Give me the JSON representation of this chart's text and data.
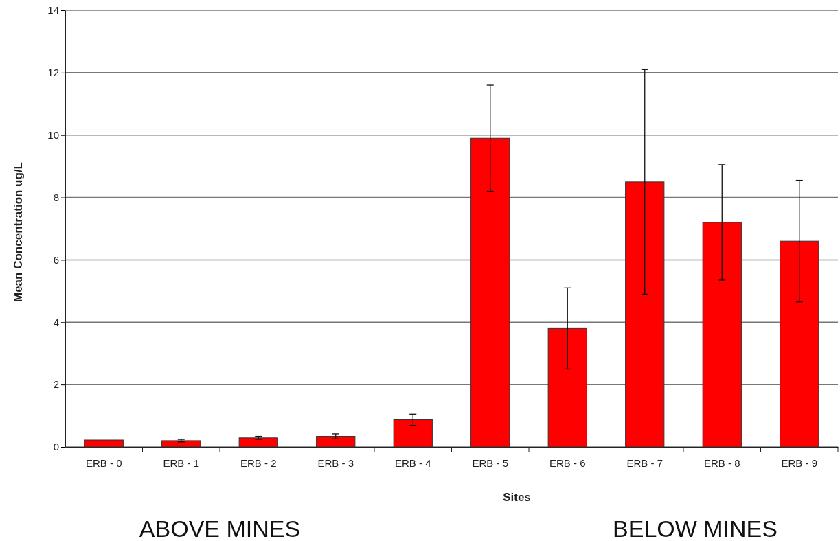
{
  "chart_data": {
    "type": "bar",
    "xlabel": "Sites",
    "ylabel": "Mean Concentration ug/L",
    "categories": [
      "ERB - 0",
      "ERB - 1",
      "ERB - 2",
      "ERB - 3",
      "ERB - 4",
      "ERB - 5",
      "ERB - 6",
      "ERB - 7",
      "ERB - 8",
      "ERB - 9"
    ],
    "values": [
      0.22,
      0.2,
      0.29,
      0.34,
      0.87,
      9.9,
      3.8,
      8.5,
      7.2,
      6.6
    ],
    "errors": [
      null,
      0.04,
      0.05,
      0.08,
      0.18,
      1.7,
      1.3,
      3.6,
      1.85,
      1.95
    ],
    "color": "#ff0000",
    "ylim": [
      0,
      14
    ],
    "yticks": [
      0,
      2,
      4,
      6,
      8,
      10,
      12,
      14
    ],
    "grid": "y",
    "annotations": [
      "ABOVE MINES",
      "BELOW MINES"
    ]
  }
}
